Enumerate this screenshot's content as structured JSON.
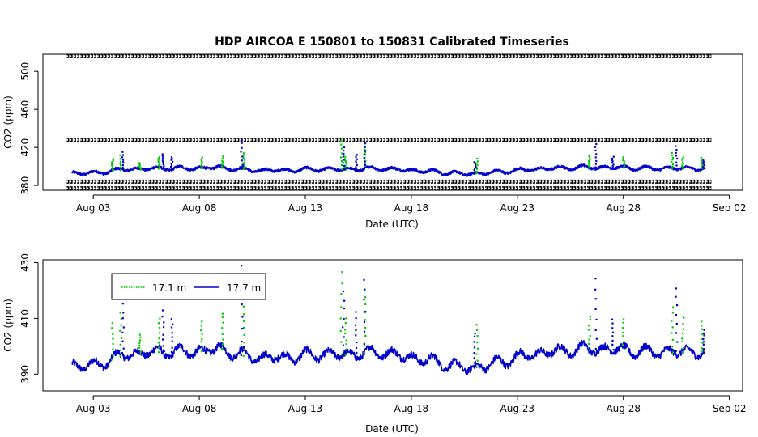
{
  "chart_data": [
    {
      "type": "scatter",
      "title": "HDP   AIRCOA  E   150801  to  150831   Calibrated Timeseries",
      "xlabel": "Date (UTC)",
      "ylabel": "CO2 (ppm)",
      "x_ticks": [
        "Aug 03",
        "Aug 08",
        "Aug 13",
        "Aug 18",
        "Aug 23",
        "Aug 28",
        "Sep 02"
      ],
      "y_ticks": [
        "380",
        "420",
        "460",
        "500"
      ],
      "xlim": [
        "2015-07-31T15:00",
        "2015-09-02T15:00"
      ],
      "ylim": [
        375,
        518
      ],
      "calibration_levels_ppm": [
        377,
        384,
        428,
        516
      ],
      "series": [
        {
          "color": "#0000cc",
          "baseline": [
            [
              1.0,
              393
            ],
            [
              2.0,
              393
            ],
            [
              3.5,
              397
            ],
            [
              5.0,
              398
            ],
            [
              6.5,
              398
            ],
            [
              8.0,
              399
            ],
            [
              9.5,
              396
            ],
            [
              11.0,
              396
            ],
            [
              12.5,
              397
            ],
            [
              14.0,
              397
            ],
            [
              15.5,
              398
            ],
            [
              17.0,
              396
            ],
            [
              18.5,
              394
            ],
            [
              19.5,
              392
            ],
            [
              20.5,
              393
            ],
            [
              22.0,
              396
            ],
            [
              23.5,
              398
            ],
            [
              25.0,
              399
            ],
            [
              26.5,
              399
            ],
            [
              28.0,
              398
            ],
            [
              29.5,
              398
            ],
            [
              30.8,
              398
            ]
          ],
          "spikes": [
            [
              3.4,
              415
            ],
            [
              5.3,
              413
            ],
            [
              5.7,
              410
            ],
            [
              9.0,
              429
            ],
            [
              13.8,
              420
            ],
            [
              14.8,
              424
            ],
            [
              14.4,
              412
            ],
            [
              20.0,
              405
            ],
            [
              25.7,
              424
            ],
            [
              26.5,
              410
            ],
            [
              29.5,
              421
            ],
            [
              30.8,
              406
            ]
          ]
        },
        {
          "color": "#00cc00",
          "spikes": [
            [
              2.9,
              408
            ],
            [
              3.3,
              412
            ],
            [
              4.2,
              404
            ],
            [
              5.1,
              410
            ],
            [
              7.1,
              409
            ],
            [
              8.1,
              412
            ],
            [
              9.1,
              414
            ],
            [
              13.7,
              427
            ],
            [
              13.9,
              410
            ],
            [
              14.8,
              418
            ],
            [
              20.1,
              408
            ],
            [
              25.4,
              411
            ],
            [
              27.0,
              410
            ],
            [
              29.3,
              414
            ],
            [
              29.8,
              410
            ],
            [
              30.7,
              409
            ]
          ]
        }
      ]
    },
    {
      "type": "scatter",
      "xlabel": "Date (UTC)",
      "ylabel": "CO2 (ppm)",
      "x_ticks": [
        "Aug 03",
        "Aug 08",
        "Aug 13",
        "Aug 18",
        "Aug 23",
        "Aug 28",
        "Sep 02"
      ],
      "y_ticks": [
        "390",
        "410",
        "430"
      ],
      "xlim": [
        "2015-07-31T15:00",
        "2015-09-02T15:00"
      ],
      "ylim": [
        384,
        431
      ],
      "legend": {
        "position": "top-left",
        "entries": [
          {
            "label": "17.1 m",
            "color": "#00cc00"
          },
          {
            "label": "17.7 m",
            "color": "#0000cc"
          }
        ]
      }
    }
  ]
}
